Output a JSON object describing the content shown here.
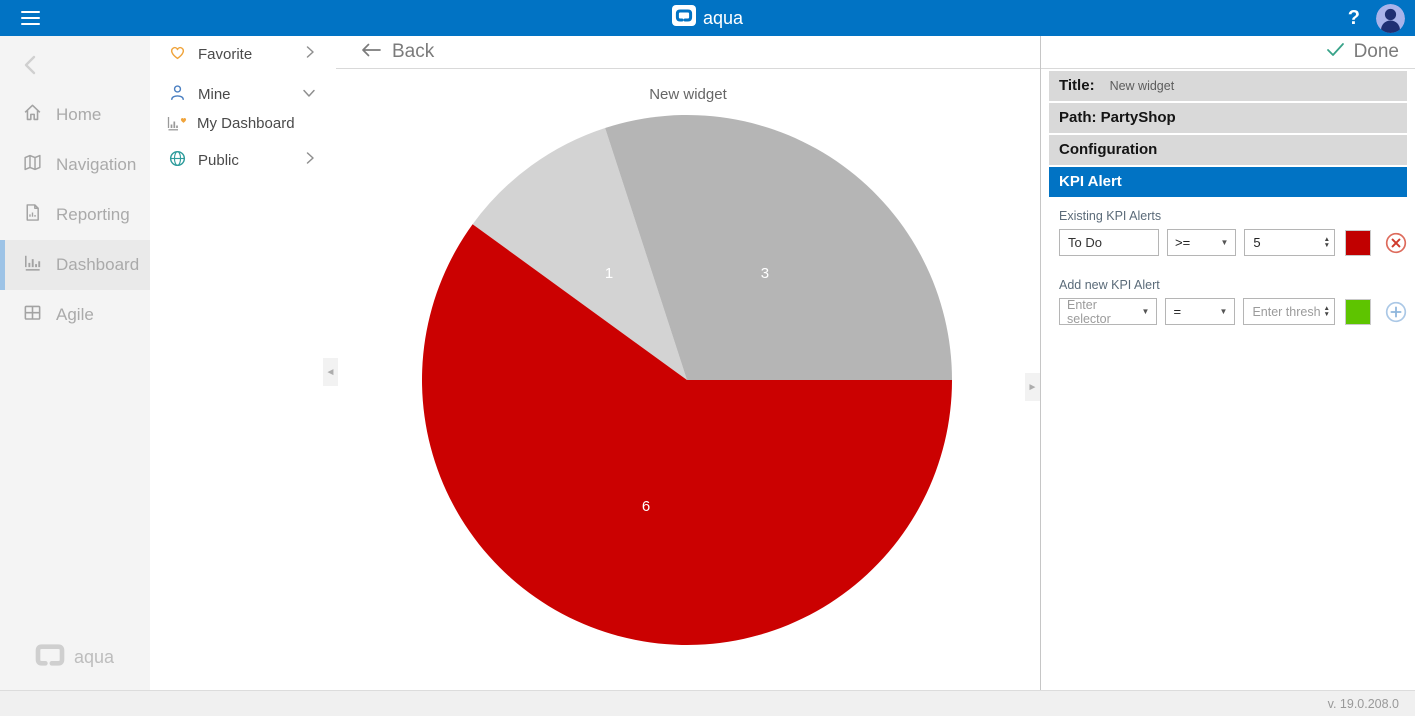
{
  "topbar": {
    "brand": "aqua",
    "help_label": "?"
  },
  "sidebar": {
    "items": [
      {
        "label": "Home",
        "active": false
      },
      {
        "label": "Navigation",
        "active": false
      },
      {
        "label": "Reporting",
        "active": false
      },
      {
        "label": "Dashboard",
        "active": true
      },
      {
        "label": "Agile",
        "active": false
      }
    ],
    "footer_brand": "aqua"
  },
  "tree": {
    "favorite_label": "Favorite",
    "mine_label": "Mine",
    "my_dashboard_label": "My Dashboard",
    "public_label": "Public"
  },
  "header": {
    "back_label": "Back",
    "done_label": "Done"
  },
  "chart_data": {
    "type": "pie",
    "title": "New widget",
    "slices": [
      {
        "label": "1",
        "value": 1,
        "color": "#d3d3d3"
      },
      {
        "label": "3",
        "value": 3,
        "color": "#b5b5b5"
      },
      {
        "label": "6",
        "value": 6,
        "color": "#cb0101"
      }
    ],
    "start_angle_deg": -54,
    "label_color": "#ffffff",
    "legend": "none"
  },
  "panel": {
    "title_label": "Title:",
    "title_value": "New widget",
    "path_label": "Path: PartyShop",
    "configuration_label": "Configuration",
    "kpi_alert_label": "KPI Alert",
    "existing_label": "Existing KPI Alerts",
    "existing_row": {
      "selector": "To Do",
      "operator": ">=",
      "threshold": "5",
      "color": "#c10000"
    },
    "add_label": "Add new KPI Alert",
    "add_row": {
      "selector_placeholder": "Enter selector",
      "operator": "=",
      "threshold_placeholder": "Enter thresh",
      "color": "#5ec400"
    }
  },
  "footer": {
    "version": "v. 19.0.208.0"
  },
  "icons": {
    "caret_down": "▼",
    "spinner_up": "▲",
    "spinner_down": "▼",
    "collapse_left": "◄",
    "collapse_right": "►"
  }
}
